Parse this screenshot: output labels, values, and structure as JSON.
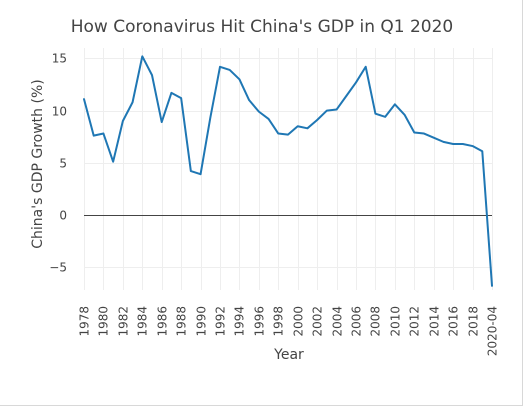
{
  "chart_data": {
    "type": "line",
    "title": "How Coronavirus Hit China's GDP in Q1 2020",
    "xlabel": "Year",
    "ylabel": "China's GDP Growth (%)",
    "ylim": [
      -7.2,
      16
    ],
    "yticks": [
      15,
      10,
      5,
      0,
      -5
    ],
    "ytick_labels": [
      "15",
      "10",
      "5",
      "0",
      "−5"
    ],
    "xtick_labels": [
      "1978",
      "1980",
      "1982",
      "1984",
      "1986",
      "1988",
      "1990",
      "1992",
      "1994",
      "1996",
      "1998",
      "2000",
      "2002",
      "2004",
      "2006",
      "2008",
      "2010",
      "2012",
      "2014",
      "2016",
      "2018",
      "2020-04"
    ],
    "grid": true,
    "legend": "none",
    "color": "#1f77b4",
    "x": [
      "1978",
      "1979",
      "1980",
      "1981",
      "1982",
      "1983",
      "1984",
      "1985",
      "1986",
      "1987",
      "1988",
      "1989",
      "1990",
      "1991",
      "1992",
      "1993",
      "1994",
      "1995",
      "1996",
      "1997",
      "1998",
      "1999",
      "2000",
      "2001",
      "2002",
      "2003",
      "2004",
      "2005",
      "2006",
      "2007",
      "2008",
      "2009",
      "2010",
      "2011",
      "2012",
      "2013",
      "2014",
      "2015",
      "2016",
      "2017",
      "2018",
      "2019",
      "2020-04"
    ],
    "values": [
      11.1,
      7.6,
      7.8,
      5.1,
      9.0,
      10.8,
      15.2,
      13.4,
      8.9,
      11.7,
      11.2,
      4.2,
      3.9,
      9.3,
      14.2,
      13.9,
      13.0,
      11.0,
      9.9,
      9.2,
      7.8,
      7.7,
      8.5,
      8.3,
      9.1,
      10.0,
      10.1,
      11.4,
      12.7,
      14.2,
      9.7,
      9.4,
      10.6,
      9.6,
      7.9,
      7.8,
      7.4,
      7.0,
      6.8,
      6.8,
      6.6,
      6.1,
      -6.8
    ]
  }
}
